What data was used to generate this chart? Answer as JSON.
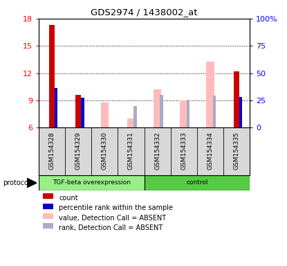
{
  "title": "GDS2974 / 1438002_at",
  "samples": [
    "GSM154328",
    "GSM154329",
    "GSM154330",
    "GSM154331",
    "GSM154332",
    "GSM154333",
    "GSM154334",
    "GSM154335"
  ],
  "ylim_left": [
    6,
    18
  ],
  "ylim_right": [
    0,
    100
  ],
  "yticks_left": [
    6,
    9,
    12,
    15,
    18
  ],
  "yticks_right": [
    0,
    25,
    50,
    75,
    100
  ],
  "ytick_labels_right": [
    "0",
    "25",
    "50",
    "75",
    "100%"
  ],
  "red_bars": [
    17.3,
    9.6,
    null,
    null,
    null,
    null,
    null,
    12.2
  ],
  "blue_bars": [
    10.4,
    9.3,
    null,
    null,
    null,
    null,
    null,
    9.4
  ],
  "pink_bars": [
    null,
    null,
    8.8,
    7.0,
    10.2,
    9.0,
    13.3,
    null
  ],
  "lavender_bars": [
    null,
    null,
    null,
    8.4,
    9.6,
    9.1,
    9.5,
    null
  ],
  "red_color": "#cc0000",
  "blue_color": "#0000cc",
  "pink_color": "#ffbbbb",
  "lavender_color": "#aaaacc",
  "tgf_color": "#99ee88",
  "ctrl_color": "#55cc44",
  "gray_bg": "#d8d8d8",
  "legend_items": [
    {
      "label": "count",
      "color": "#cc0000"
    },
    {
      "label": "percentile rank within the sample",
      "color": "#0000cc"
    },
    {
      "label": "value, Detection Call = ABSENT",
      "color": "#ffbbbb"
    },
    {
      "label": "rank, Detection Call = ABSENT",
      "color": "#aaaacc"
    }
  ]
}
